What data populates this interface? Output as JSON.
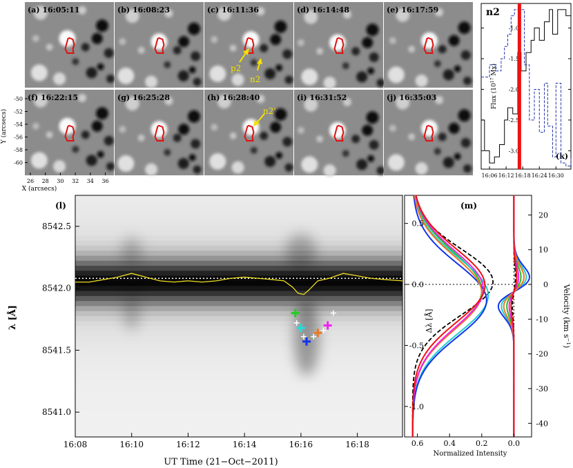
{
  "panels": [
    {
      "tag": "(a)",
      "time": "16:05:11"
    },
    {
      "tag": "(b)",
      "time": "16:08:23"
    },
    {
      "tag": "(c)",
      "time": "16:11:36"
    },
    {
      "tag": "(d)",
      "time": "16:14:48"
    },
    {
      "tag": "(e)",
      "time": "16:17:59"
    },
    {
      "tag": "(f)",
      "time": "16:22:15"
    },
    {
      "tag": "(g)",
      "time": "16:25:28"
    },
    {
      "tag": "(h)",
      "time": "16:28:40"
    },
    {
      "tag": "(i)",
      "time": "16:31:52"
    },
    {
      "tag": "(j)",
      "time": "16:35:03"
    }
  ],
  "annotations": {
    "p2": "p2",
    "n2": "n2",
    "n2_prime": "n2'"
  },
  "map_axes": {
    "xlabel": "X (arcsecs)",
    "ylabel": "Y (arcsecs)",
    "xticks": [
      "26",
      "28",
      "30",
      "32",
      "34",
      "36"
    ],
    "yticks": [
      "-50",
      "-52",
      "-54",
      "-56",
      "-58",
      "-60"
    ]
  },
  "colors": {
    "contour": "#e01010",
    "arrow": "#f5e000",
    "vline": "#ee1111",
    "flux_dashed": "#2233aa"
  },
  "chart_data": [
    {
      "id": "k",
      "type": "line",
      "title": "n2",
      "panel_tag": "(k)",
      "ylabel": "Flux (10^17 Mx)",
      "ylabel_main": "Flux (10",
      "ylabel_exp": "17",
      "ylabel_end": " Mx)",
      "xlim": [
        16.05,
        16.59
      ],
      "ylim": [
        -3.3,
        -0.6
      ],
      "yticks": [
        "-1.0",
        "-1.5",
        "-2.0",
        "-2.5",
        "-3.0"
      ],
      "ytick_values": [
        -1.0,
        -1.5,
        -2.0,
        -2.5,
        -3.0
      ],
      "xticks": [
        "16:06",
        "16:12",
        "16:18",
        "16:24",
        "16:30"
      ],
      "xtick_values": [
        16.1,
        16.2,
        16.3,
        16.4,
        16.5
      ],
      "vline_x": 16.28,
      "series": [
        {
          "name": "solid",
          "style": "solid-step",
          "x": [
            16.05,
            16.07,
            16.1,
            16.13,
            16.16,
            16.19,
            16.21,
            16.24,
            16.27,
            16.29,
            16.32,
            16.35,
            16.37,
            16.4,
            16.43,
            16.46,
            16.48,
            16.51,
            16.54,
            16.56,
            16.59
          ],
          "y": [
            -2.5,
            -3.0,
            -3.2,
            -3.1,
            -2.9,
            -2.5,
            -2.3,
            -2.4,
            -1.4,
            -1.7,
            -1.4,
            -1.2,
            -1.0,
            -1.2,
            -0.9,
            -0.7,
            -1.1,
            -0.7,
            -0.7,
            -0.8,
            -1.2
          ]
        },
        {
          "name": "dashed",
          "style": "dashed-step",
          "x": [
            16.05,
            16.1,
            16.14,
            16.17,
            16.19,
            16.21,
            16.23,
            16.25,
            16.27,
            16.31,
            16.34,
            16.37,
            16.4,
            16.43,
            16.45,
            16.48,
            16.5,
            16.53,
            16.56,
            16.59
          ],
          "y": [
            -1.8,
            -1.6,
            -1.7,
            -1.5,
            -1.3,
            -1.1,
            -0.8,
            -0.7,
            -0.7,
            -1.6,
            -2.5,
            -2.0,
            -2.7,
            -1.9,
            -2.6,
            -3.1,
            -1.9,
            -3.2,
            -3.25,
            -3.1
          ]
        }
      ]
    },
    {
      "id": "l",
      "type": "heatmap",
      "panel_tag": "(l)",
      "xlabel": "UT Time (21−Oct−2011)",
      "ylabel": "λ [Å]",
      "xlim": [
        8.0,
        19.6
      ],
      "ylim": [
        8540.8,
        8542.75
      ],
      "xticks": [
        "16:08",
        "16:10",
        "16:12",
        "16:14",
        "16:16",
        "16:18"
      ],
      "xtick_values": [
        8,
        10,
        12,
        14,
        16,
        18
      ],
      "yticks": [
        "8542.5",
        "8542.0",
        "8541.5",
        "8541.0"
      ],
      "ytick_values": [
        8542.5,
        8542.0,
        8541.5,
        8541.0
      ],
      "reference_line": 8542.08,
      "centroid_curve": {
        "x": [
          8.0,
          8.5,
          9.0,
          9.5,
          10.0,
          10.5,
          11.0,
          11.5,
          12.0,
          12.5,
          13.0,
          13.5,
          14.0,
          14.5,
          15.0,
          15.4,
          15.7,
          15.9,
          16.1,
          16.3,
          16.6,
          17.0,
          17.5,
          18.0,
          18.5,
          19.0,
          19.6
        ],
        "y": [
          8542.05,
          8542.05,
          8542.07,
          8542.09,
          8542.12,
          8542.09,
          8542.06,
          8542.05,
          8542.06,
          8542.05,
          8542.06,
          8542.08,
          8542.09,
          8542.08,
          8542.07,
          8542.06,
          8542.01,
          8541.96,
          8541.95,
          8541.99,
          8542.06,
          8542.08,
          8542.12,
          8542.1,
          8542.08,
          8542.07,
          8542.06
        ]
      },
      "markers": [
        {
          "x": 15.8,
          "y": 8541.8,
          "color": "#22cc22",
          "big": true
        },
        {
          "x": 15.85,
          "y": 8541.72,
          "color": "#ffffff",
          "big": false
        },
        {
          "x": 16.0,
          "y": 8541.68,
          "color": "#22dddd",
          "big": true
        },
        {
          "x": 16.1,
          "y": 8541.61,
          "color": "#ffffff",
          "big": false
        },
        {
          "x": 16.2,
          "y": 8541.57,
          "color": "#1133ee",
          "big": true
        },
        {
          "x": 16.45,
          "y": 8541.61,
          "color": "#ffffff",
          "big": false
        },
        {
          "x": 16.6,
          "y": 8541.64,
          "color": "#ee7722",
          "big": true
        },
        {
          "x": 16.8,
          "y": 8541.66,
          "color": "#ffffff",
          "big": false
        },
        {
          "x": 16.95,
          "y": 8541.7,
          "color": "#ee22ee",
          "big": true
        },
        {
          "x": 17.15,
          "y": 8541.8,
          "color": "#ffffff",
          "big": false
        }
      ]
    },
    {
      "id": "m",
      "type": "line",
      "panel_tag": "(m)",
      "xlabel": "Normalized Intensity",
      "ylabel_left": "Δλ [Å]",
      "ylabel_right": "Velocity (km s⁻¹)",
      "ylabel_right_main": "Velocity (km s",
      "ylabel_right_exp": "−1",
      "ylabel_right_end": ")",
      "xlim": [
        0.68,
        -0.11
      ],
      "ylim": [
        -1.25,
        0.73
      ],
      "xticks": [
        "0.6",
        "0.4",
        "0.2",
        "0.0"
      ],
      "xtick_values": [
        0.6,
        0.4,
        0.2,
        0.0
      ],
      "left_yticks": [
        "0.5",
        "0.0",
        "-0.5",
        "-1.0"
      ],
      "left_ytick_values": [
        0.5,
        0.0,
        -0.5,
        -1.0
      ],
      "right_yticks": [
        "20",
        "10",
        "0",
        "-10",
        "-20",
        "-30",
        "-40"
      ],
      "right_ytick_values": [
        20,
        10,
        0,
        -10,
        -20,
        -30,
        -40
      ],
      "series": [
        {
          "name": "profile-black-dashed",
          "color": "#000000",
          "dash": true,
          "center": 0.02,
          "sigma": 0.27,
          "depth": 0.5
        },
        {
          "name": "profile-green",
          "color": "#22bb22",
          "dash": false,
          "center": -0.05,
          "sigma": 0.31,
          "depth": 0.43
        },
        {
          "name": "profile-cyan",
          "color": "#22cccc",
          "dash": false,
          "center": -0.09,
          "sigma": 0.31,
          "depth": 0.47
        },
        {
          "name": "profile-blue",
          "color": "#1133ee",
          "dash": false,
          "center": -0.13,
          "sigma": 0.3,
          "depth": 0.46
        },
        {
          "name": "profile-orange",
          "color": "#ee7722",
          "dash": false,
          "center": -0.07,
          "sigma": 0.3,
          "depth": 0.43
        },
        {
          "name": "profile-magenta",
          "color": "#ee22ee",
          "dash": false,
          "center": -0.04,
          "sigma": 0.31,
          "depth": 0.44
        },
        {
          "name": "profile-red",
          "color": "#ee1111",
          "dash": false,
          "center": -0.01,
          "sigma": 0.3,
          "depth": 0.45
        }
      ],
      "derivative_series": [
        {
          "name": "deriv-black-dashed",
          "color": "#000000",
          "dash": true,
          "amp": 0.01
        },
        {
          "name": "deriv-green",
          "color": "#22bb22",
          "dash": false,
          "amp": 0.045
        },
        {
          "name": "deriv-cyan",
          "color": "#22cccc",
          "dash": false,
          "amp": 0.08
        },
        {
          "name": "deriv-blue",
          "color": "#1133ee",
          "dash": false,
          "amp": 0.1
        },
        {
          "name": "deriv-orange",
          "color": "#ee7722",
          "dash": false,
          "amp": 0.065
        },
        {
          "name": "deriv-magenta",
          "color": "#ee22ee",
          "dash": false,
          "amp": 0.03
        },
        {
          "name": "deriv-red",
          "color": "#ee1111",
          "dash": false,
          "amp": 0.018
        }
      ]
    }
  ]
}
